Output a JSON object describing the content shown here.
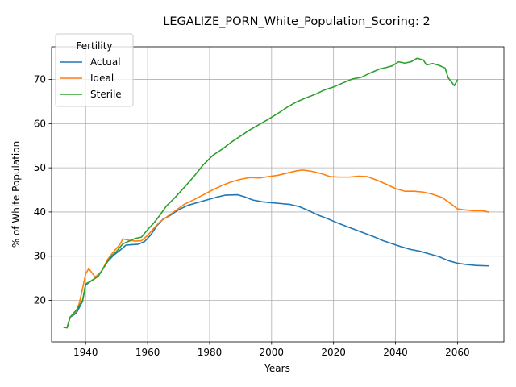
{
  "chart_data": {
    "type": "line",
    "title": "LEGALIZE_PORN_White_Population_Scoring: 2",
    "xlabel": "Years",
    "ylabel": "% of White Population",
    "xlim": [
      1929,
      2075
    ],
    "ylim": [
      10.6,
      77.4
    ],
    "xticks": [
      1940,
      1960,
      1980,
      2000,
      2020,
      2040,
      2060
    ],
    "yticks": [
      20,
      30,
      40,
      50,
      60,
      70
    ],
    "grid": true,
    "legend": {
      "title": "Fertility",
      "placement": "top-left"
    },
    "series": [
      {
        "name": "Actual",
        "color": "#1f77b4",
        "points": [
          [
            1933,
            13.9
          ],
          [
            1934,
            13.8
          ],
          [
            1935,
            16.2
          ],
          [
            1937,
            17.1
          ],
          [
            1939,
            19.8
          ],
          [
            1940,
            23.5
          ],
          [
            1941,
            24.0
          ],
          [
            1943,
            25.0
          ],
          [
            1945,
            26.5
          ],
          [
            1947,
            28.7
          ],
          [
            1949,
            30.2
          ],
          [
            1951,
            31.3
          ],
          [
            1953,
            32.5
          ],
          [
            1955,
            32.6
          ],
          [
            1957,
            32.7
          ],
          [
            1959,
            33.3
          ],
          [
            1961,
            34.8
          ],
          [
            1963,
            36.9
          ],
          [
            1965,
            38.4
          ],
          [
            1967,
            39.1
          ],
          [
            1970,
            40.5
          ],
          [
            1973,
            41.5
          ],
          [
            1976,
            42.1
          ],
          [
            1979,
            42.7
          ],
          [
            1982,
            43.3
          ],
          [
            1985,
            43.8
          ],
          [
            1989,
            43.9
          ],
          [
            1991,
            43.5
          ],
          [
            1994,
            42.7
          ],
          [
            1997,
            42.3
          ],
          [
            2000,
            42.1
          ],
          [
            2003,
            41.9
          ],
          [
            2006,
            41.7
          ],
          [
            2009,
            41.2
          ],
          [
            2012,
            40.3
          ],
          [
            2015,
            39.3
          ],
          [
            2018,
            38.5
          ],
          [
            2021,
            37.6
          ],
          [
            2024,
            36.8
          ],
          [
            2027,
            36.0
          ],
          [
            2030,
            35.2
          ],
          [
            2033,
            34.4
          ],
          [
            2036,
            33.5
          ],
          [
            2039,
            32.8
          ],
          [
            2042,
            32.1
          ],
          [
            2045,
            31.5
          ],
          [
            2048,
            31.1
          ],
          [
            2051,
            30.5
          ],
          [
            2054,
            29.9
          ],
          [
            2057,
            29.0
          ],
          [
            2060,
            28.4
          ],
          [
            2063,
            28.1
          ],
          [
            2066,
            27.9
          ],
          [
            2070,
            27.8
          ]
        ]
      },
      {
        "name": "Ideal",
        "color": "#ff7f0e",
        "points": [
          [
            1933,
            13.9
          ],
          [
            1934,
            13.8
          ],
          [
            1935,
            16.2
          ],
          [
            1937,
            17.5
          ],
          [
            1938,
            19.5
          ],
          [
            1939,
            22.7
          ],
          [
            1940,
            26.0
          ],
          [
            1941,
            27.2
          ],
          [
            1943,
            25.3
          ],
          [
            1945,
            26.3
          ],
          [
            1947,
            29.2
          ],
          [
            1949,
            31.0
          ],
          [
            1951,
            32.6
          ],
          [
            1952,
            33.9
          ],
          [
            1954,
            33.6
          ],
          [
            1956,
            33.4
          ],
          [
            1958,
            33.5
          ],
          [
            1960,
            34.7
          ],
          [
            1962,
            36.3
          ],
          [
            1964,
            37.8
          ],
          [
            1966,
            38.8
          ],
          [
            1969,
            40.3
          ],
          [
            1972,
            41.8
          ],
          [
            1975,
            42.8
          ],
          [
            1978,
            43.9
          ],
          [
            1981,
            45.0
          ],
          [
            1984,
            46.0
          ],
          [
            1987,
            46.8
          ],
          [
            1990,
            47.4
          ],
          [
            1993,
            47.8
          ],
          [
            1996,
            47.7
          ],
          [
            1999,
            48.0
          ],
          [
            2002,
            48.3
          ],
          [
            2005,
            48.8
          ],
          [
            2008,
            49.3
          ],
          [
            2010,
            49.5
          ],
          [
            2013,
            49.2
          ],
          [
            2016,
            48.7
          ],
          [
            2019,
            48.0
          ],
          [
            2022,
            47.9
          ],
          [
            2025,
            47.9
          ],
          [
            2028,
            48.1
          ],
          [
            2031,
            48.0
          ],
          [
            2034,
            47.2
          ],
          [
            2037,
            46.3
          ],
          [
            2040,
            45.3
          ],
          [
            2043,
            44.7
          ],
          [
            2046,
            44.7
          ],
          [
            2049,
            44.5
          ],
          [
            2052,
            44.0
          ],
          [
            2055,
            43.3
          ],
          [
            2058,
            41.8
          ],
          [
            2060,
            40.7
          ],
          [
            2062,
            40.5
          ],
          [
            2065,
            40.3
          ],
          [
            2068,
            40.3
          ],
          [
            2070,
            40.0
          ]
        ]
      },
      {
        "name": "Sterile",
        "color": "#2ca02c",
        "points": [
          [
            1933,
            13.9
          ],
          [
            1934,
            13.8
          ],
          [
            1935,
            16.2
          ],
          [
            1937,
            17.8
          ],
          [
            1939,
            20.0
          ],
          [
            1940,
            23.7
          ],
          [
            1942,
            24.5
          ],
          [
            1944,
            25.4
          ],
          [
            1946,
            27.6
          ],
          [
            1948,
            29.8
          ],
          [
            1950,
            31.1
          ],
          [
            1952,
            32.8
          ],
          [
            1954,
            33.4
          ],
          [
            1956,
            34.0
          ],
          [
            1958,
            34.3
          ],
          [
            1960,
            36.0
          ],
          [
            1962,
            37.5
          ],
          [
            1964,
            39.3
          ],
          [
            1966,
            41.3
          ],
          [
            1969,
            43.4
          ],
          [
            1972,
            45.7
          ],
          [
            1975,
            48.1
          ],
          [
            1978,
            50.7
          ],
          [
            1981,
            52.8
          ],
          [
            1984,
            54.2
          ],
          [
            1987,
            55.8
          ],
          [
            1990,
            57.2
          ],
          [
            1993,
            58.6
          ],
          [
            1996,
            59.8
          ],
          [
            1999,
            61.0
          ],
          [
            2002,
            62.3
          ],
          [
            2005,
            63.7
          ],
          [
            2008,
            64.9
          ],
          [
            2011,
            65.8
          ],
          [
            2014,
            66.6
          ],
          [
            2017,
            67.6
          ],
          [
            2020,
            68.3
          ],
          [
            2023,
            69.2
          ],
          [
            2026,
            70.1
          ],
          [
            2029,
            70.5
          ],
          [
            2032,
            71.5
          ],
          [
            2035,
            72.4
          ],
          [
            2037,
            72.7
          ],
          [
            2039,
            73.1
          ],
          [
            2041,
            74.0
          ],
          [
            2043,
            73.7
          ],
          [
            2045,
            74.0
          ],
          [
            2047,
            74.8
          ],
          [
            2049,
            74.4
          ],
          [
            2050,
            73.3
          ],
          [
            2052,
            73.6
          ],
          [
            2054,
            73.2
          ],
          [
            2056,
            72.6
          ],
          [
            2057,
            70.4
          ],
          [
            2059,
            68.6
          ],
          [
            2060,
            69.9
          ]
        ]
      }
    ]
  }
}
